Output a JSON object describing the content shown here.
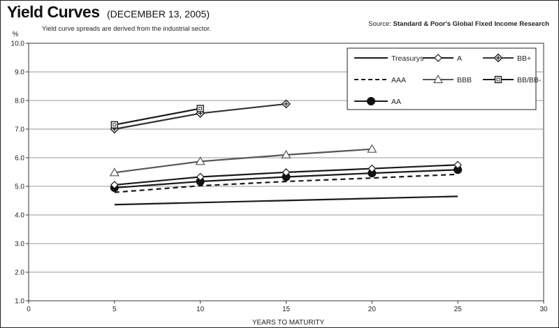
{
  "header": {
    "title": "Yield Curves",
    "subtitle": "(DECEMBER 13, 2005)",
    "note": "Yield curve spreads are derived from the industrial sector.",
    "source_prefix": "Source:",
    "source_name": "Standard & Poor's Global Fixed Income Research"
  },
  "chart_data": {
    "type": "line",
    "title": "Yield Curves",
    "subtitle": "(DECEMBER 13, 2005)",
    "xlabel": "YEARS TO MATURITY",
    "ylabel": "%",
    "xlim": [
      0,
      30
    ],
    "ylim": [
      1.0,
      10.0
    ],
    "xticks": [
      0,
      5,
      10,
      15,
      20,
      25,
      30
    ],
    "yticks": [
      1.0,
      2.0,
      3.0,
      4.0,
      5.0,
      6.0,
      7.0,
      8.0,
      9.0,
      10.0
    ],
    "grid": "horizontal",
    "legend_position": "top-right",
    "series": [
      {
        "name": "Treasurys",
        "marker": "none",
        "dash": false,
        "color": "#1a1a1a",
        "x": [
          5,
          25
        ],
        "y": [
          4.36,
          4.65
        ]
      },
      {
        "name": "AAA",
        "marker": "none",
        "dash": true,
        "color": "#1a1a1a",
        "x": [
          5,
          10,
          15,
          20,
          25
        ],
        "y": [
          4.79,
          5.02,
          5.17,
          5.29,
          5.42
        ]
      },
      {
        "name": "AA",
        "marker": "filled-circle",
        "dash": false,
        "color": "#1a1a1a",
        "x": [
          5,
          10,
          15,
          20,
          25
        ],
        "y": [
          4.95,
          5.17,
          5.33,
          5.46,
          5.58
        ]
      },
      {
        "name": "A",
        "marker": "open-diamond",
        "dash": false,
        "color": "#1a1a1a",
        "x": [
          5,
          10,
          15,
          20,
          25
        ],
        "y": [
          5.05,
          5.33,
          5.49,
          5.62,
          5.75
        ]
      },
      {
        "name": "BBB",
        "marker": "open-triangle",
        "dash": false,
        "color": "#555555",
        "x": [
          5,
          10,
          15,
          20
        ],
        "y": [
          5.48,
          5.87,
          6.1,
          6.3
        ]
      },
      {
        "name": "BB+",
        "marker": "diamond-cross",
        "dash": false,
        "color": "#333333",
        "x": [
          5,
          10,
          15
        ],
        "y": [
          7.0,
          7.55,
          7.88
        ]
      },
      {
        "name": "BB/BB-",
        "marker": "open-square",
        "dash": false,
        "color": "#1a1a1a",
        "x": [
          5,
          10
        ],
        "y": [
          7.15,
          7.72
        ]
      }
    ],
    "legend_order": [
      "Treasurys",
      "A",
      "BB+",
      "AAA",
      "BBB",
      "BB/BB-",
      "AA"
    ]
  }
}
